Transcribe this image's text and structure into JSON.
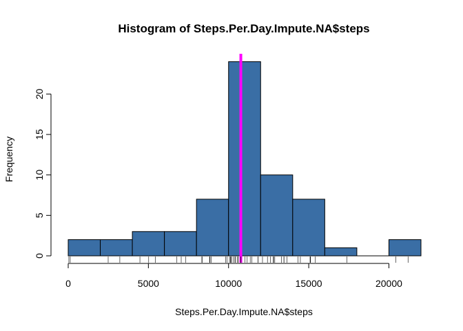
{
  "chart_data": {
    "type": "bar",
    "title": "Histogram of Steps.Per.Day.Impute.NA$steps",
    "xlabel": "Steps.Per.Day.Impute.NA$steps",
    "ylabel": "Frequency",
    "bins": [
      {
        "start": 0,
        "end": 2000,
        "count": 2
      },
      {
        "start": 2000,
        "end": 4000,
        "count": 2
      },
      {
        "start": 4000,
        "end": 6000,
        "count": 3
      },
      {
        "start": 6000,
        "end": 8000,
        "count": 3
      },
      {
        "start": 8000,
        "end": 10000,
        "count": 7
      },
      {
        "start": 10000,
        "end": 12000,
        "count": 24
      },
      {
        "start": 12000,
        "end": 14000,
        "count": 10
      },
      {
        "start": 14000,
        "end": 16000,
        "count": 7
      },
      {
        "start": 16000,
        "end": 18000,
        "count": 1
      },
      {
        "start": 18000,
        "end": 20000,
        "count": 0
      },
      {
        "start": 20000,
        "end": 22000,
        "count": 2
      }
    ],
    "xlim": [
      0,
      22000
    ],
    "ylim": [
      0,
      24
    ],
    "x_ticks": [
      0,
      5000,
      10000,
      15000,
      20000
    ],
    "y_ticks": [
      0,
      5,
      10,
      15,
      20
    ],
    "mean_line": 10766,
    "rug": [
      41,
      126,
      2492,
      3219,
      4472,
      5018,
      5441,
      6778,
      7047,
      7336,
      8334,
      8355,
      8821,
      8841,
      8918,
      9819,
      9900,
      10056,
      10119,
      10139,
      10183,
      10304,
      10395,
      10439,
      10571,
      10600,
      10765,
      10766,
      11015,
      11162,
      11352,
      11458,
      11829,
      11834,
      12116,
      12426,
      12608,
      12787,
      12811,
      12883,
      13294,
      13452,
      13460,
      13646,
      14339,
      14478,
      15084,
      15098,
      15110,
      15414,
      17382,
      20427,
      21194
    ],
    "colors": {
      "bar_fill": "#3a6ea5",
      "bar_stroke": "#000000",
      "mean_line": "#ff00ff"
    },
    "grid": false,
    "legend": "none"
  }
}
